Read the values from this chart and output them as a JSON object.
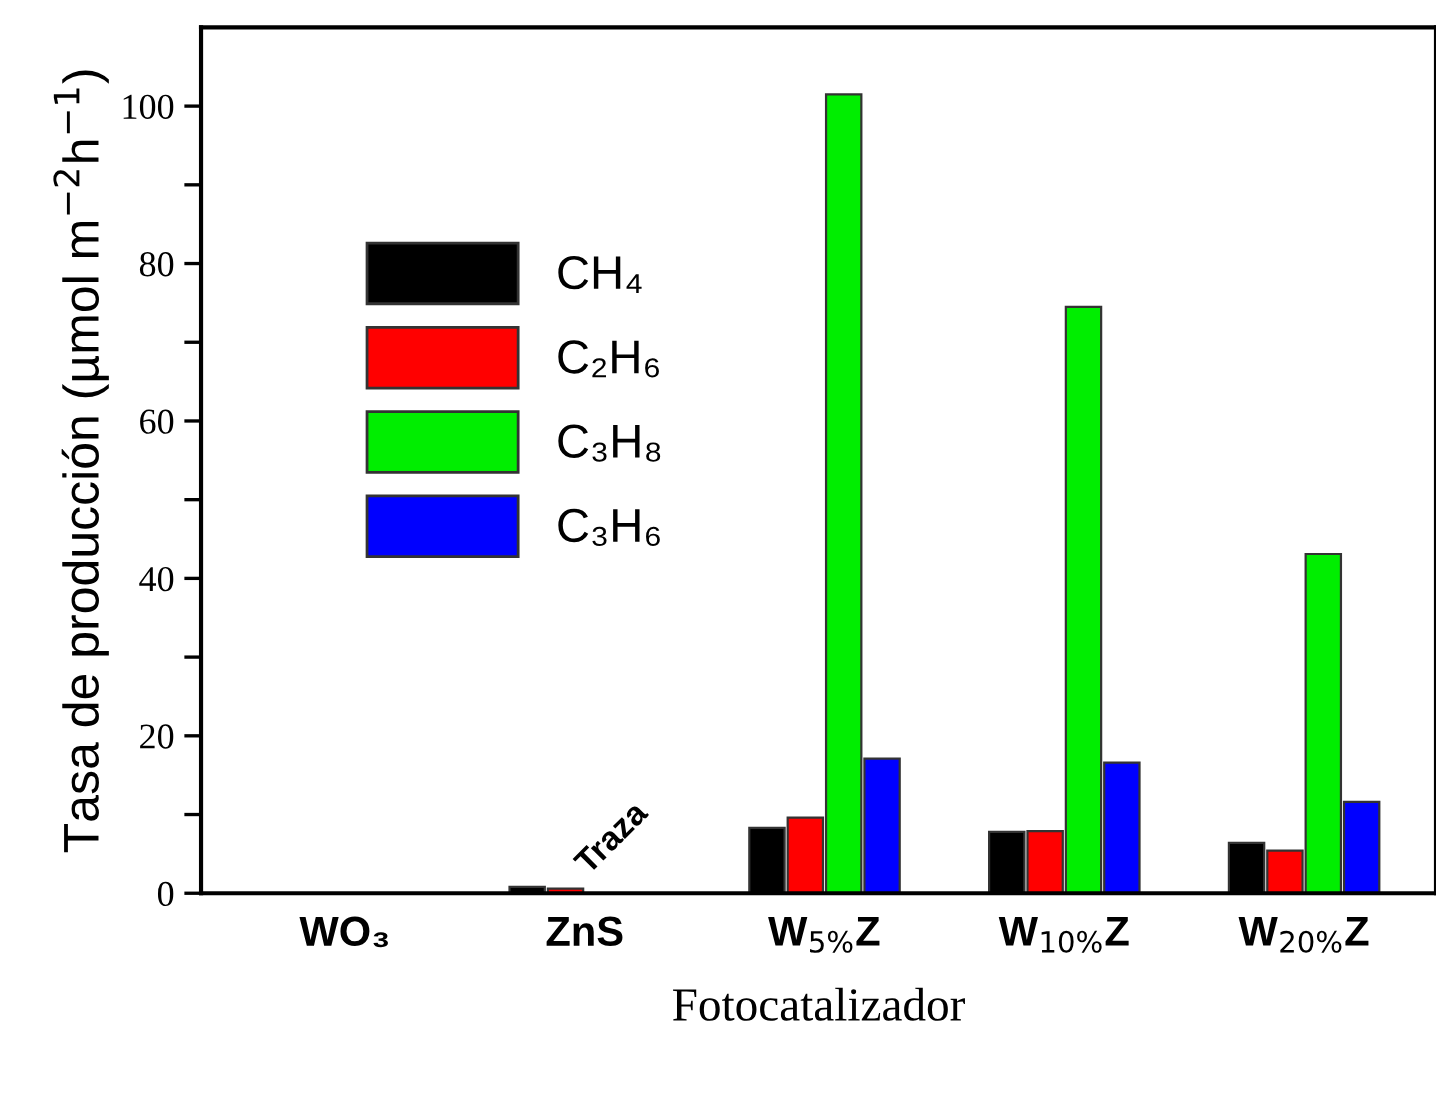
{
  "chart_data": {
    "type": "bar",
    "xlabel": "Fotocatalizador",
    "ylabel": "Tasa de producción (µmol m$^{−2}$h$^{−1}$)",
    "categories": [
      "WO₃",
      "ZnS",
      "W$_{5%}$Z",
      "W$_{10%}$Z",
      "W$_{20%}$Z"
    ],
    "series": [
      {
        "name": "CH₄",
        "color": "#000000",
        "values": [
          null,
          0.8,
          8.3,
          7.8,
          6.4
        ]
      },
      {
        "name": "C₂H₆",
        "color": "#ff0000",
        "values": [
          null,
          0.6,
          9.6,
          7.9,
          5.4
        ]
      },
      {
        "name": "C₃H₈",
        "color": "#00ee00",
        "values": [
          null,
          null,
          101.5,
          74.5,
          43.1
        ]
      },
      {
        "name": "C₃H₆",
        "color": "#0000ff",
        "values": [
          null,
          null,
          17.1,
          16.6,
          11.6
        ]
      }
    ],
    "ylim": [
      0,
      110
    ],
    "yticks": [
      0,
      {
        "value": 10,
        "label": null
      },
      20,
      {
        "value": 30,
        "label": null
      },
      40,
      {
        "value": 50,
        "label": null
      },
      60,
      {
        "value": 70,
        "label": null
      },
      80,
      {
        "value": 90,
        "label": null
      },
      100
    ],
    "annotations": [
      "Traza"
    ],
    "legend": "top left",
    "grid": false
  }
}
